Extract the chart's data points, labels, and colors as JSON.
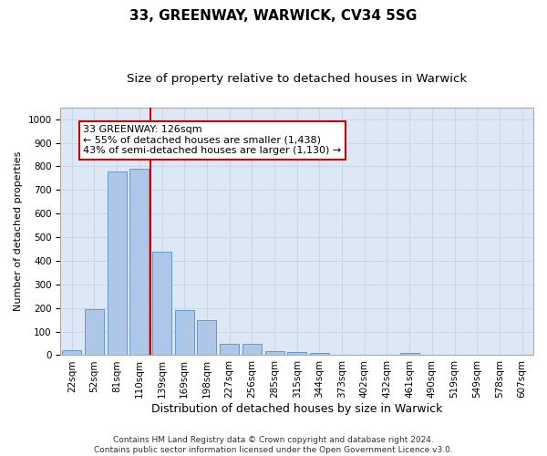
{
  "title1": "33, GREENWAY, WARWICK, CV34 5SG",
  "title2": "Size of property relative to detached houses in Warwick",
  "xlabel": "Distribution of detached houses by size in Warwick",
  "ylabel": "Number of detached properties",
  "bar_labels": [
    "22sqm",
    "52sqm",
    "81sqm",
    "110sqm",
    "139sqm",
    "169sqm",
    "198sqm",
    "227sqm",
    "256sqm",
    "285sqm",
    "315sqm",
    "344sqm",
    "373sqm",
    "402sqm",
    "432sqm",
    "461sqm",
    "490sqm",
    "519sqm",
    "549sqm",
    "578sqm",
    "607sqm"
  ],
  "bar_values": [
    20,
    195,
    780,
    790,
    440,
    190,
    148,
    50,
    50,
    18,
    15,
    8,
    0,
    0,
    0,
    8,
    0,
    0,
    0,
    0,
    0
  ],
  "bar_color": "#aec6e8",
  "bar_edge_color": "#5a8fc2",
  "grid_color": "#c8d8e8",
  "background_color": "#dce8f5",
  "vline_x_index": 3.5,
  "vline_color": "#cc0000",
  "annotation_text": "33 GREENWAY: 126sqm\n← 55% of detached houses are smaller (1,438)\n43% of semi-detached houses are larger (1,130) →",
  "annotation_box_color": "#ffffff",
  "annotation_box_edge": "#cc0000",
  "footer_text": "Contains HM Land Registry data © Crown copyright and database right 2024.\nContains public sector information licensed under the Open Government Licence v3.0.",
  "ylim": [
    0,
    1050
  ],
  "yticks": [
    0,
    100,
    200,
    300,
    400,
    500,
    600,
    700,
    800,
    900,
    1000
  ],
  "title1_fontsize": 11,
  "title2_fontsize": 9.5,
  "xlabel_fontsize": 9,
  "ylabel_fontsize": 8,
  "tick_fontsize": 7.5,
  "annotation_fontsize": 8,
  "footer_fontsize": 6.5
}
